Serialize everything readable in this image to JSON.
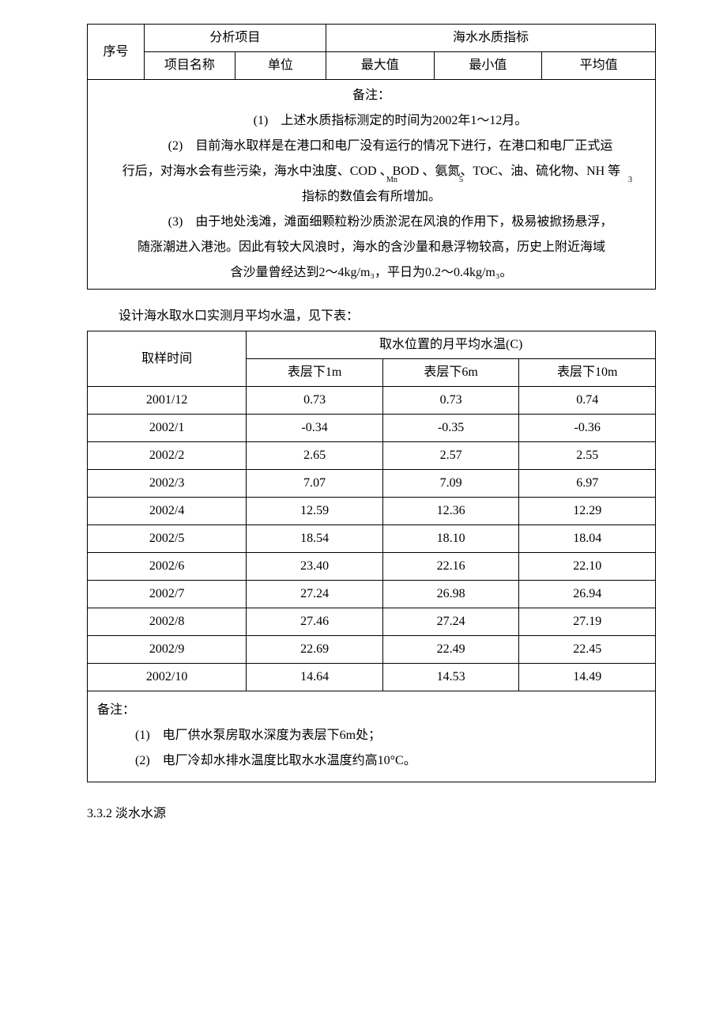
{
  "table1": {
    "col_seq": "序号",
    "group_analysis": "分析项目",
    "group_quality": "海水水质指标",
    "col_item_name": "项目名称",
    "col_unit": "单位",
    "col_max": "最大值",
    "col_min": "最小值",
    "col_avg": "平均值",
    "col_widths_pct": [
      10,
      16,
      16,
      19,
      19,
      20
    ]
  },
  "remarks1": {
    "title": "备注：",
    "p1": "(1)　上述水质指标测定的时间为2002年1～12月。",
    "p2a": "(2)　目前海水取样是在港口和电厂没有运行的情况下进行，在港口和电厂正式运",
    "p2b": "行后，对海水会有些污染，海水中浊度、COD 、BOD 、氨氮、TOC、油、硫化物、NH 等",
    "p2c": "指标的数值会有所增加。",
    "p3a": "(3)　由于地处浅滩，滩面细颗粒粉沙质淤泥在风浪的作用下，极易被掀扬悬浮，",
    "p3b": "随涨潮进入港池。因此有较大风浪时，海水的含沙量和悬浮物较高，历史上附近海域",
    "p3c": "含沙量曾经达到2～4kg/m₃，平日为0.2～0.4kg/m₃。",
    "sub_mn": "Mn",
    "sub_5": "5",
    "sub_3": "3"
  },
  "intro2": "设计海水取水口实测月平均水温，见下表：",
  "table2": {
    "col_time": "取样时间",
    "group_temp": "取水位置的月平均水温(C)",
    "col_d1": "表层下1m",
    "col_d6": "表层下6m",
    "col_d10": "表层下10m",
    "col_widths_pct": [
      28,
      24,
      24,
      24
    ],
    "rows": [
      {
        "t": "2001/12",
        "d1": "0.73",
        "d6": "0.73",
        "d10": "0.74"
      },
      {
        "t": "2002/1",
        "d1": "-0.34",
        "d6": "-0.35",
        "d10": "-0.36"
      },
      {
        "t": "2002/2",
        "d1": "2.65",
        "d6": "2.57",
        "d10": "2.55"
      },
      {
        "t": "2002/3",
        "d1": "7.07",
        "d6": "7.09",
        "d10": "6.97"
      },
      {
        "t": "2002/4",
        "d1": "12.59",
        "d6": "12.36",
        "d10": "12.29"
      },
      {
        "t": "2002/5",
        "d1": "18.54",
        "d6": "18.10",
        "d10": "18.04"
      },
      {
        "t": "2002/6",
        "d1": "23.40",
        "d6": "22.16",
        "d10": "22.10"
      },
      {
        "t": "2002/7",
        "d1": "27.24",
        "d6": "26.98",
        "d10": "26.94"
      },
      {
        "t": "2002/8",
        "d1": "27.46",
        "d6": "27.24",
        "d10": "27.19"
      },
      {
        "t": "2002/9",
        "d1": "22.69",
        "d6": "22.49",
        "d10": "22.45"
      },
      {
        "t": "2002/10",
        "d1": "14.64",
        "d6": "14.53",
        "d10": "14.49"
      }
    ]
  },
  "remarks2": {
    "title": "备注：",
    "p1": "(1)　电厂供水泵房取水深度为表层下6m处；",
    "p2": "(2)　电厂冷却水排水温度比取水水温度约高10°C。"
  },
  "section_heading": "3.3.2 淡水水源",
  "style": {
    "background_color": "#ffffff",
    "text_color": "#000000",
    "border_color": "#000000",
    "body_fontsize": 16,
    "sub_fontsize": 10,
    "font_family": "SimSun"
  }
}
